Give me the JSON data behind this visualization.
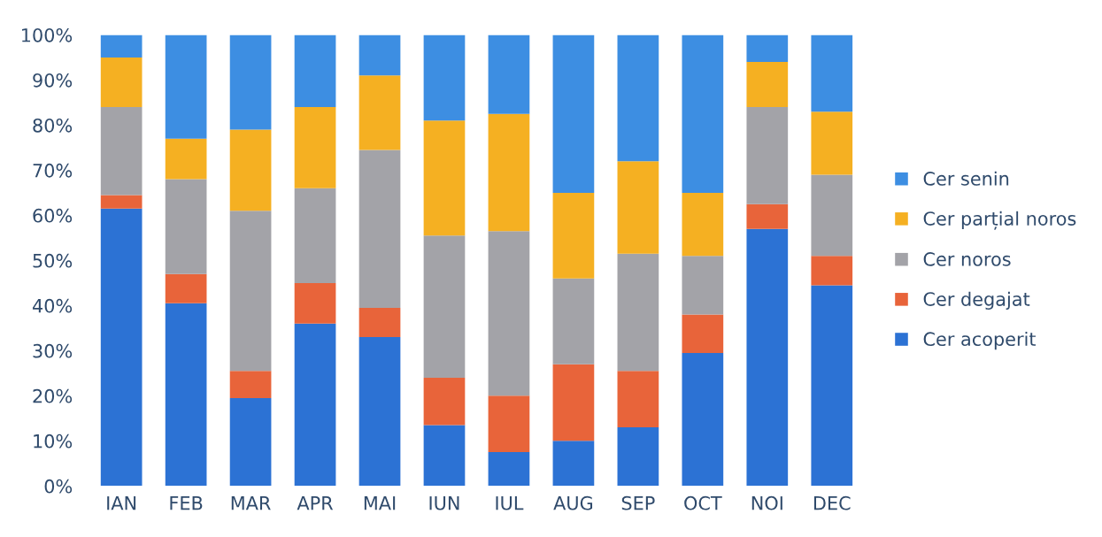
{
  "chart_data": {
    "type": "bar",
    "stacked": true,
    "categories": [
      "IAN",
      "FEB",
      "MAR",
      "APR",
      "MAI",
      "IUN",
      "IUL",
      "AUG",
      "SEP",
      "OCT",
      "NOI",
      "DEC"
    ],
    "series": [
      {
        "name": "Cer acoperit",
        "color": "#2c72d4",
        "values": [
          61.5,
          40.5,
          19.5,
          36,
          33,
          13.5,
          7.5,
          10,
          13,
          29.5,
          57,
          44.5
        ]
      },
      {
        "name": "Cer degajat",
        "color": "#e8643a",
        "values": [
          3,
          6.5,
          6,
          9,
          6.5,
          10.5,
          12.5,
          17,
          12.5,
          8.5,
          5.5,
          6.5
        ]
      },
      {
        "name": "Cer noros",
        "color": "#a3a3a8",
        "values": [
          19.5,
          21,
          35.5,
          21,
          35,
          31.5,
          36.5,
          19,
          26,
          13,
          21.5,
          18
        ]
      },
      {
        "name": "Cer parțial noros",
        "color": "#f5b022",
        "values": [
          11,
          9,
          18,
          18,
          16.5,
          25.5,
          26,
          19,
          20.5,
          14,
          10,
          14
        ]
      },
      {
        "name": "Cer senin",
        "color": "#3d8ee2",
        "values": [
          5,
          23,
          21,
          16,
          9,
          19,
          17.5,
          35,
          28,
          35,
          6,
          17
        ]
      }
    ],
    "ylim": [
      0,
      100
    ],
    "yticks": [
      {
        "value": 0,
        "label": "0%"
      },
      {
        "value": 10,
        "label": "10%"
      },
      {
        "value": 20,
        "label": "20%"
      },
      {
        "value": 30,
        "label": "30%"
      },
      {
        "value": 40,
        "label": "40%"
      },
      {
        "value": 50,
        "label": "50%"
      },
      {
        "value": 60,
        "label": "60%"
      },
      {
        "value": 70,
        "label": "70%"
      },
      {
        "value": 80,
        "label": "80%"
      },
      {
        "value": 90,
        "label": "90%"
      },
      {
        "value": 100,
        "label": "100%"
      }
    ],
    "grid": false,
    "legend": "right"
  }
}
